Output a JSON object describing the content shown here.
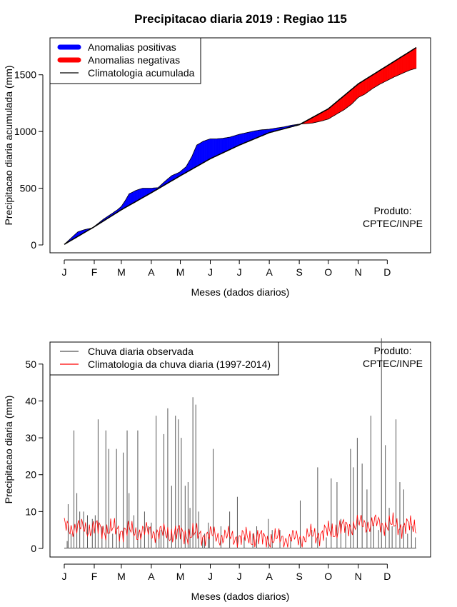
{
  "title": "Precipitacao diaria 2019 : Regiao 115",
  "watermark": "Produto:\nCPTEC/INPE",
  "chart_data": [
    {
      "type": "area",
      "name": "acumulado",
      "ylabel": "Precipitacao diaria acumulada (mm)",
      "xlabel": "Meses (dados diarios)",
      "months": [
        "J",
        "F",
        "M",
        "A",
        "M",
        "J",
        "J",
        "A",
        "S",
        "O",
        "N",
        "D"
      ],
      "month_start_days": [
        1,
        32,
        60,
        91,
        121,
        152,
        182,
        213,
        244,
        274,
        305,
        335
      ],
      "xlim": [
        1,
        365
      ],
      "ylim": [
        0,
        1750
      ],
      "yticks": [
        0,
        500,
        1000,
        1500
      ],
      "legend": [
        {
          "label": "Anomalias positivas",
          "color": "#0000ff",
          "kind": "thick"
        },
        {
          "label": "Anomalias negativas",
          "color": "#ff0000",
          "kind": "thick"
        },
        {
          "label": "Climatologia acumulada",
          "color": "#000000",
          "kind": "line"
        }
      ],
      "climatology_cumulative": {
        "day": [
          1,
          32,
          60,
          91,
          121,
          152,
          182,
          213,
          244,
          274,
          305,
          335,
          365
        ],
        "value": [
          5,
          160,
          310,
          460,
          610,
          760,
          880,
          990,
          1060,
          1200,
          1420,
          1580,
          1740
        ]
      },
      "observed_cumulative": {
        "day": [
          1,
          8,
          15,
          22,
          30,
          36,
          42,
          50,
          56,
          60,
          64,
          68,
          75,
          82,
          91,
          98,
          105,
          112,
          120,
          127,
          133,
          138,
          145,
          152,
          158,
          165,
          172,
          182,
          190,
          198,
          205,
          213,
          220,
          228,
          236,
          244,
          252,
          258,
          266,
          274,
          282,
          290,
          298,
          305,
          312,
          320,
          328,
          335,
          342,
          350,
          358,
          364
        ],
        "value": [
          5,
          60,
          115,
          135,
          150,
          190,
          230,
          275,
          310,
          340,
          390,
          450,
          480,
          500,
          500,
          505,
          560,
          610,
          640,
          690,
          780,
          880,
          915,
          935,
          935,
          940,
          950,
          975,
          990,
          1005,
          1015,
          1020,
          1030,
          1040,
          1055,
          1065,
          1070,
          1075,
          1090,
          1110,
          1150,
          1190,
          1240,
          1300,
          1330,
          1380,
          1420,
          1450,
          1480,
          1510,
          1540,
          1555
        ]
      }
    },
    {
      "type": "bar",
      "name": "diaria",
      "ylabel": "Precipitacao diaria (mm)",
      "xlabel": "Meses (dados diarios)",
      "months": [
        "J",
        "F",
        "M",
        "A",
        "M",
        "J",
        "J",
        "A",
        "S",
        "O",
        "N",
        "D"
      ],
      "month_start_days": [
        1,
        32,
        60,
        91,
        121,
        152,
        182,
        213,
        244,
        274,
        305,
        335
      ],
      "xlim": [
        1,
        365
      ],
      "ylim": [
        0,
        55
      ],
      "yticks": [
        0,
        10,
        20,
        30,
        40,
        50
      ],
      "legend": [
        {
          "label": "Chuva diaria observada",
          "color": "#555555",
          "kind": "line"
        },
        {
          "label": "Climatologia da chuva diaria (1997-2014)",
          "color": "#ff0000",
          "kind": "line"
        }
      ],
      "observed_daily_spikes": {
        "day": [
          4,
          5,
          8,
          11,
          14,
          17,
          21,
          25,
          30,
          33,
          36,
          40,
          44,
          47,
          51,
          55,
          58,
          62,
          66,
          68,
          73,
          77,
          80,
          84,
          88,
          91,
          96,
          99,
          101,
          104,
          108,
          112,
          116,
          119,
          122,
          126,
          129,
          131,
          134,
          137,
          140,
          144,
          146,
          150,
          151,
          155,
          163,
          172,
          180,
          187,
          196,
          200,
          212,
          216,
          224,
          235,
          245,
          257,
          263,
          272,
          277,
          283,
          287,
          292,
          297,
          300,
          304,
          309,
          314,
          318,
          321,
          326,
          329,
          333,
          337,
          340,
          344,
          348,
          352,
          356,
          360,
          364
        ],
        "value": [
          2,
          12,
          4,
          32,
          15,
          10,
          10,
          9,
          8,
          9,
          35,
          6,
          32,
          27,
          4,
          27,
          4,
          26,
          32,
          15,
          9,
          32,
          4,
          10,
          6,
          7,
          36,
          4,
          5,
          31,
          38,
          17,
          36,
          35,
          30,
          17,
          18,
          11,
          41,
          39,
          10,
          3,
          4,
          7,
          3,
          27,
          6,
          10,
          14,
          3,
          4,
          6,
          8,
          5,
          5,
          3,
          13,
          5,
          22,
          3,
          19,
          18,
          8,
          6,
          27,
          22,
          30,
          23,
          16,
          36,
          7,
          5,
          57,
          28,
          11,
          6,
          35,
          18,
          16,
          4,
          6,
          3
        ]
      },
      "climatology_daily_mean": {
        "day": [
          1,
          15,
          32,
          46,
          60,
          74,
          91,
          105,
          121,
          135,
          152,
          166,
          182,
          196,
          213,
          227,
          244,
          258,
          274,
          288,
          305,
          319,
          335,
          349,
          365
        ],
        "value": [
          6,
          5.5,
          5.5,
          5,
          5,
          4.5,
          4.5,
          4,
          4,
          3.8,
          3.5,
          3.2,
          3,
          2.8,
          2.5,
          2.6,
          2.8,
          3.5,
          4.5,
          5.5,
          6.5,
          6.8,
          6.5,
          6,
          6
        ]
      }
    }
  ]
}
